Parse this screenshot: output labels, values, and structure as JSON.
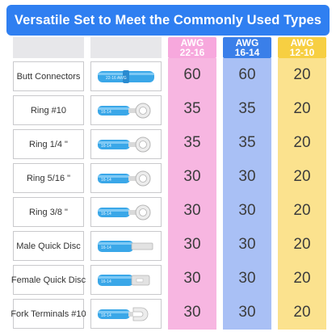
{
  "header": {
    "title": "Versatile Set to Meet the Commonly Used Types"
  },
  "columns": [
    {
      "awg": "AWG",
      "range": "22-16",
      "color": "#f7a8dd",
      "text_color": "#ffffff",
      "cell_color": "#f7b6e1"
    },
    {
      "awg": "AWG",
      "range": "16-14",
      "color": "#3a7fe9",
      "text_color": "#ffffff",
      "cell_color": "#a9c0f5"
    },
    {
      "awg": "AWG",
      "range": "12-10",
      "color": "#f7cf42",
      "text_color": "#ffffff",
      "cell_color": "#fbe28e"
    }
  ],
  "rows": [
    {
      "name": "Butt Connectors",
      "icon": "butt-connector-icon",
      "values": [
        "60",
        "60",
        "20"
      ]
    },
    {
      "name": "Ring #10",
      "icon": "ring-terminal-icon",
      "values": [
        "35",
        "35",
        "20"
      ]
    },
    {
      "name": "Ring 1/4 \"",
      "icon": "ring-terminal-icon",
      "values": [
        "35",
        "35",
        "20"
      ]
    },
    {
      "name": "Ring 5/16 \"",
      "icon": "ring-terminal-icon",
      "values": [
        "30",
        "30",
        "20"
      ]
    },
    {
      "name": "Ring 3/8 \"",
      "icon": "ring-terminal-icon",
      "values": [
        "30",
        "30",
        "20"
      ]
    },
    {
      "name": "Male Quick Disc",
      "icon": "male-disconnect-icon",
      "values": [
        "30",
        "30",
        "20"
      ]
    },
    {
      "name": "Female Quick Disc",
      "icon": "female-disconnect-icon",
      "values": [
        "30",
        "30",
        "20"
      ]
    },
    {
      "name": "Fork Terminals #10",
      "icon": "fork-terminal-icon",
      "values": [
        "30",
        "30",
        "20"
      ]
    }
  ],
  "colors": {
    "banner": "#2f7ff1",
    "connector_blue": "#3aa7e8",
    "metal": "#d9d9d9"
  }
}
